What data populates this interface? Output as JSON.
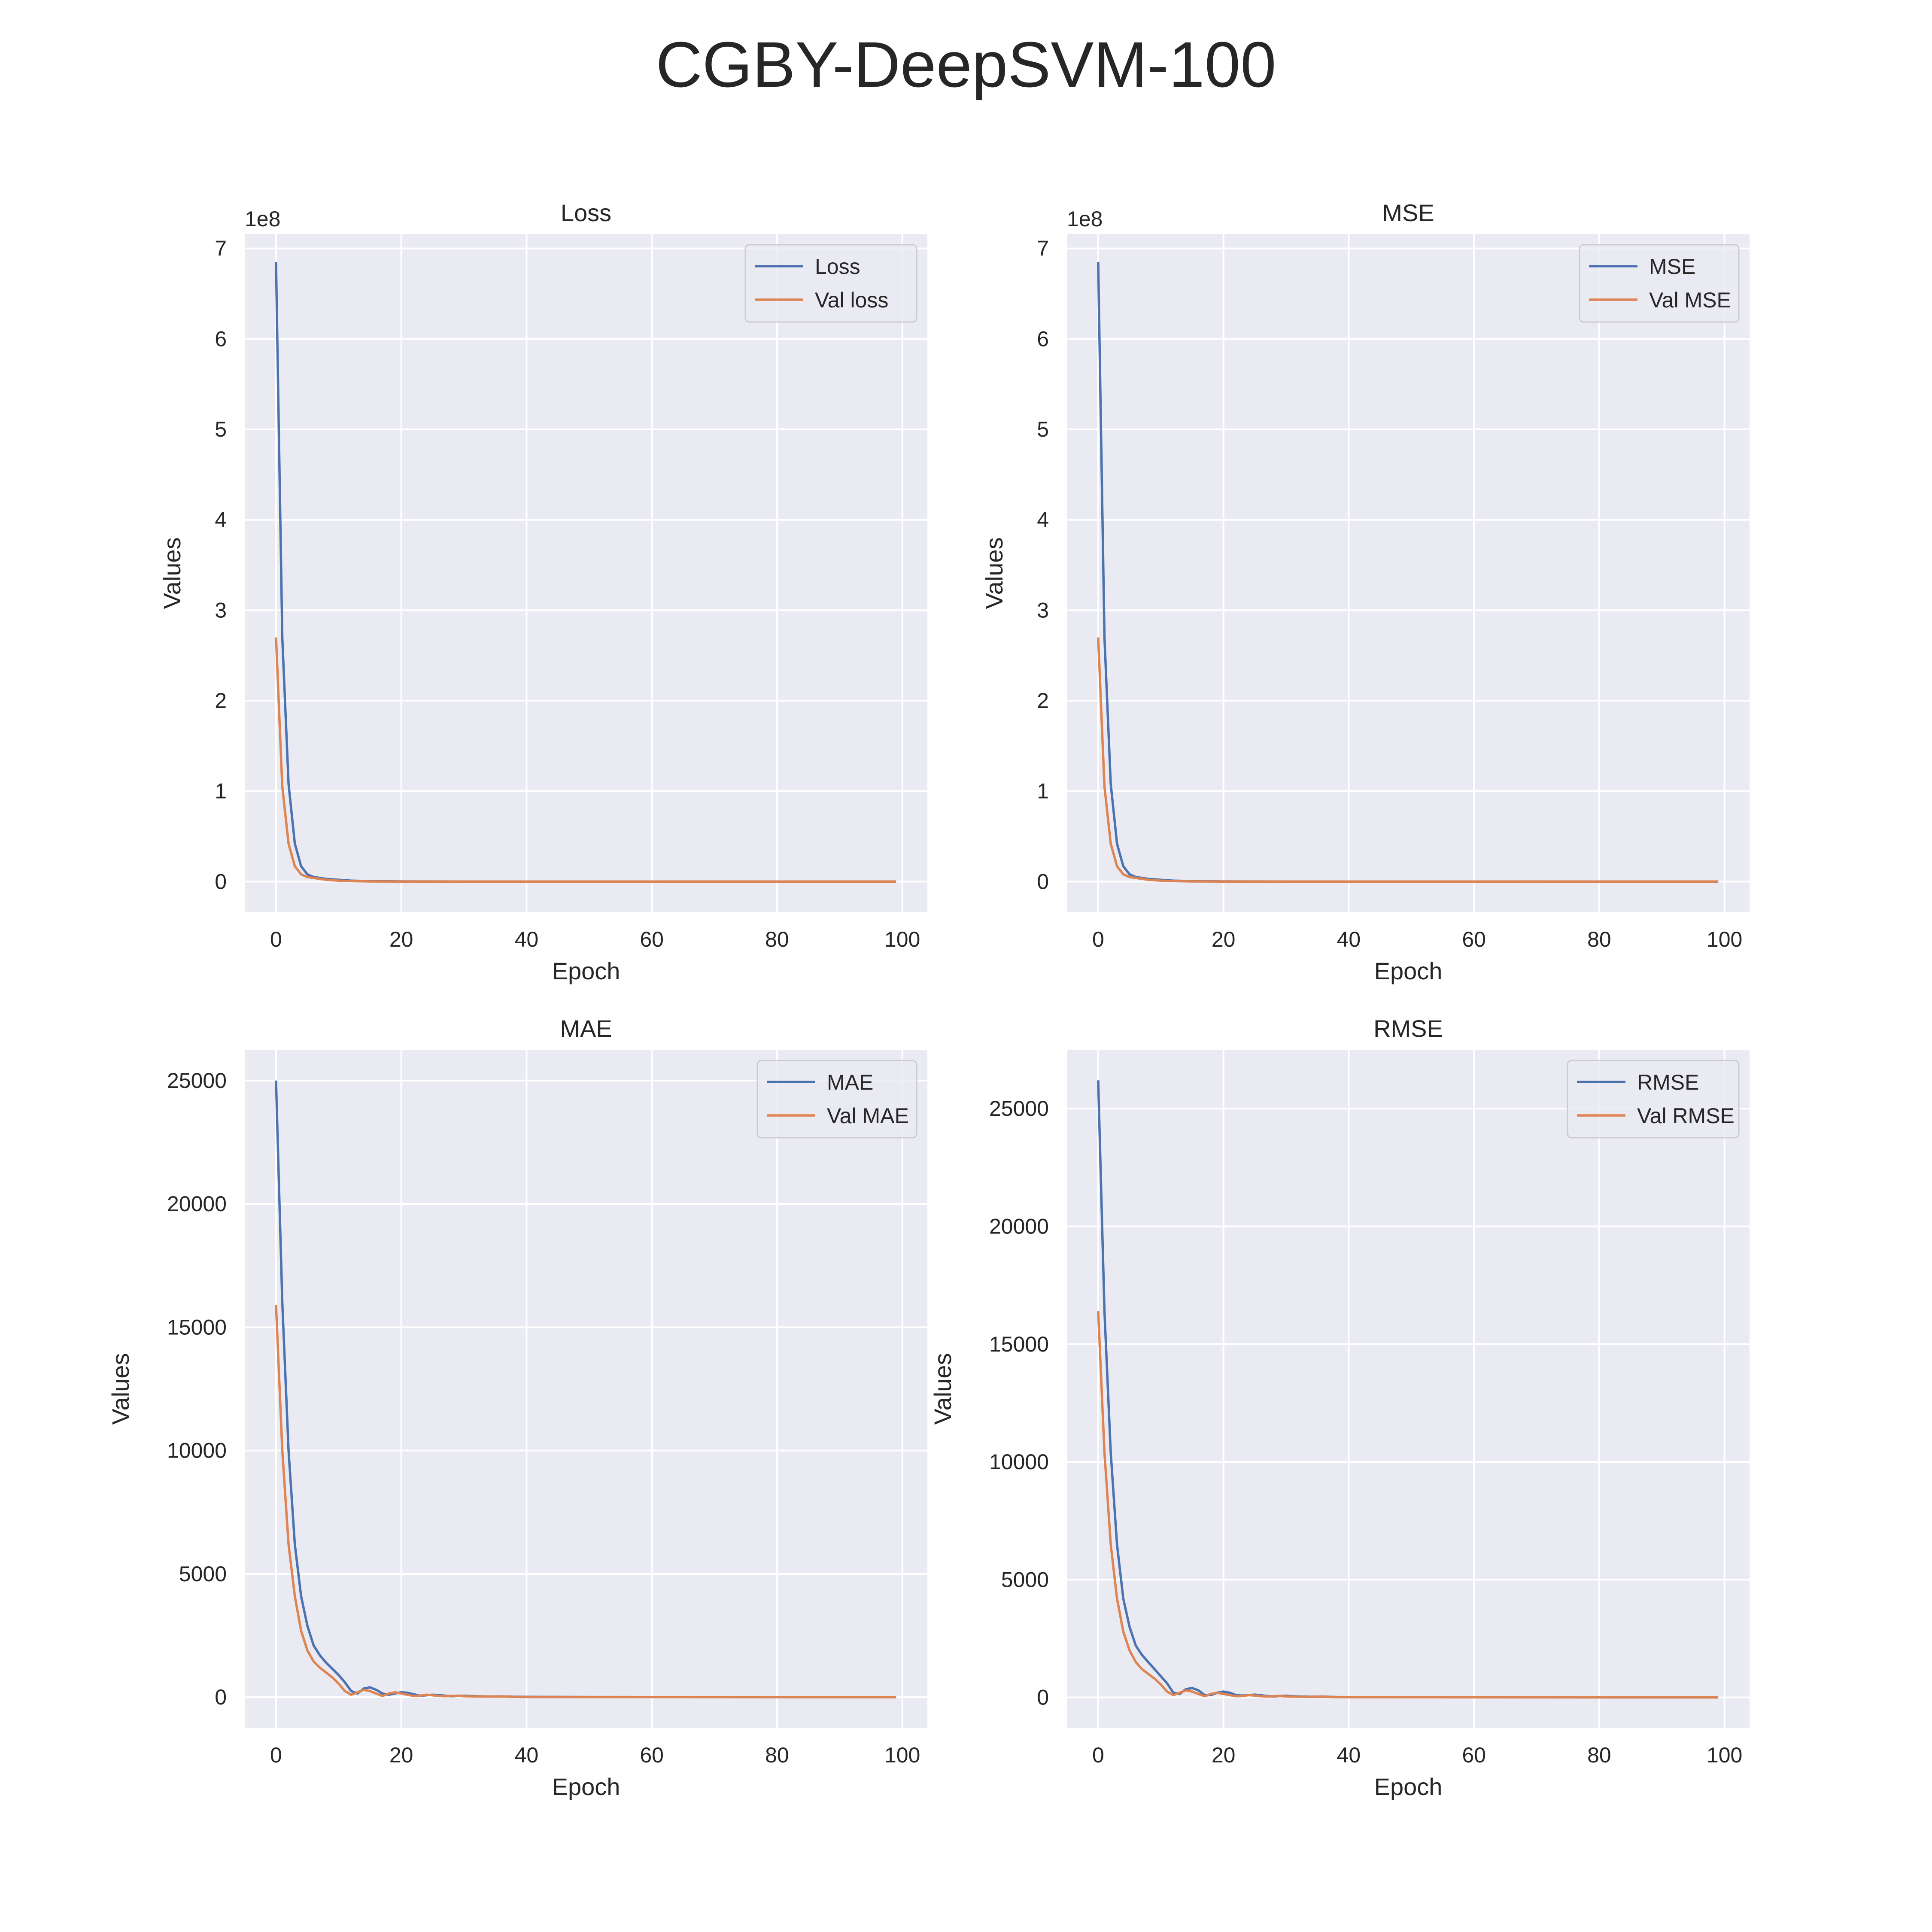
{
  "figure": {
    "title": "CGBY-DeepSVM-100"
  },
  "colors": {
    "plot_bg": "#eaeaf2",
    "grid": "#ffffff",
    "train": "#4c72b0",
    "val": "#dd8452",
    "text": "#262626",
    "legend_edge": "#cccccc"
  },
  "chart_data": [
    {
      "type": "line",
      "title": "Loss",
      "xlabel": "Epoch",
      "ylabel": "Values",
      "offset_text": "1e8",
      "xlim": [
        -5,
        104
      ],
      "ylim": [
        -0.34,
        7.16
      ],
      "xticks": [
        0,
        20,
        40,
        60,
        80,
        100
      ],
      "xtick_labels": [
        "0",
        "20",
        "40",
        "60",
        "80",
        "100"
      ],
      "yticks": [
        0,
        1,
        2,
        3,
        4,
        5,
        6,
        7
      ],
      "ytick_labels": [
        "0",
        "1",
        "2",
        "3",
        "4",
        "5",
        "6",
        "7"
      ],
      "legend": "top-right",
      "grid": true,
      "series": [
        {
          "name": "Loss",
          "color": "#4c72b0",
          "x": [
            0,
            1,
            2,
            3,
            4,
            5,
            6,
            7,
            8,
            10,
            12,
            15,
            20,
            30,
            99
          ],
          "y": [
            6.85,
            2.7,
            1.08,
            0.42,
            0.17,
            0.08,
            0.05,
            0.04,
            0.03,
            0.02,
            0.01,
            0.005,
            0.002,
            0.001,
            0.0
          ]
        },
        {
          "name": "Val loss",
          "color": "#dd8452",
          "x": [
            0,
            1,
            2,
            3,
            4,
            5,
            6,
            7,
            8,
            10,
            12,
            15,
            20,
            99
          ],
          "y": [
            2.7,
            1.05,
            0.42,
            0.17,
            0.08,
            0.05,
            0.04,
            0.03,
            0.02,
            0.01,
            0.005,
            0.002,
            0.001,
            0.0
          ]
        }
      ]
    },
    {
      "type": "line",
      "title": "MSE",
      "xlabel": "Epoch",
      "ylabel": "Values",
      "offset_text": "1e8",
      "xlim": [
        -5,
        104
      ],
      "ylim": [
        -0.34,
        7.16
      ],
      "xticks": [
        0,
        20,
        40,
        60,
        80,
        100
      ],
      "xtick_labels": [
        "0",
        "20",
        "40",
        "60",
        "80",
        "100"
      ],
      "yticks": [
        0,
        1,
        2,
        3,
        4,
        5,
        6,
        7
      ],
      "ytick_labels": [
        "0",
        "1",
        "2",
        "3",
        "4",
        "5",
        "6",
        "7"
      ],
      "legend": "top-right",
      "grid": true,
      "series": [
        {
          "name": "MSE",
          "color": "#4c72b0",
          "x": [
            0,
            1,
            2,
            3,
            4,
            5,
            6,
            7,
            8,
            10,
            12,
            15,
            20,
            30,
            99
          ],
          "y": [
            6.85,
            2.7,
            1.08,
            0.42,
            0.17,
            0.08,
            0.05,
            0.04,
            0.03,
            0.02,
            0.01,
            0.005,
            0.002,
            0.001,
            0.0
          ]
        },
        {
          "name": "Val MSE",
          "color": "#dd8452",
          "x": [
            0,
            1,
            2,
            3,
            4,
            5,
            6,
            7,
            8,
            10,
            12,
            15,
            20,
            99
          ],
          "y": [
            2.7,
            1.05,
            0.42,
            0.17,
            0.08,
            0.05,
            0.04,
            0.03,
            0.02,
            0.01,
            0.005,
            0.002,
            0.001,
            0.0
          ]
        }
      ]
    },
    {
      "type": "line",
      "title": "MAE",
      "xlabel": "Epoch",
      "ylabel": "Values",
      "offset_text": "",
      "xlim": [
        -5,
        104
      ],
      "ylim": [
        -1250,
        26250
      ],
      "xticks": [
        0,
        20,
        40,
        60,
        80,
        100
      ],
      "xtick_labels": [
        "0",
        "20",
        "40",
        "60",
        "80",
        "100"
      ],
      "yticks": [
        0,
        5000,
        10000,
        15000,
        20000,
        25000
      ],
      "ytick_labels": [
        "0",
        "5000",
        "10000",
        "15000",
        "20000",
        "25000"
      ],
      "legend": "top-right",
      "grid": true,
      "series": [
        {
          "name": "MAE",
          "color": "#4c72b0",
          "x": [
            0,
            1,
            2,
            3,
            4,
            5,
            6,
            7,
            8,
            9,
            10,
            11,
            12,
            13,
            14,
            15,
            16,
            17,
            18,
            19,
            20,
            21,
            22,
            23,
            24,
            25,
            26,
            27,
            28,
            29,
            30,
            32,
            34,
            36,
            38,
            40,
            50,
            60,
            70,
            80,
            90,
            99
          ],
          "y": [
            25000,
            16000,
            10000,
            6200,
            4100,
            2900,
            2100,
            1700,
            1400,
            1150,
            900,
            600,
            250,
            150,
            350,
            400,
            300,
            150,
            100,
            150,
            200,
            180,
            120,
            60,
            80,
            100,
            90,
            60,
            40,
            50,
            60,
            40,
            30,
            35,
            20,
            15,
            10,
            8,
            6,
            5,
            4,
            3
          ]
        },
        {
          "name": "Val MAE",
          "color": "#dd8452",
          "x": [
            0,
            1,
            2,
            3,
            4,
            5,
            6,
            7,
            8,
            9,
            10,
            11,
            12,
            13,
            14,
            15,
            16,
            17,
            18,
            19,
            20,
            21,
            22,
            23,
            24,
            25,
            26,
            27,
            28,
            29,
            30,
            32,
            34,
            36,
            38,
            40,
            50,
            60,
            70,
            80,
            90,
            99
          ],
          "y": [
            15900,
            10000,
            6200,
            4100,
            2700,
            1900,
            1450,
            1200,
            1000,
            800,
            550,
            250,
            100,
            200,
            300,
            250,
            150,
            50,
            150,
            200,
            150,
            100,
            50,
            60,
            100,
            80,
            50,
            40,
            50,
            60,
            40,
            30,
            25,
            30,
            15,
            10,
            8,
            6,
            5,
            4,
            3,
            2
          ]
        }
      ]
    },
    {
      "type": "line",
      "title": "RMSE",
      "xlabel": "Epoch",
      "ylabel": "Values",
      "offset_text": "",
      "xlim": [
        -5,
        104
      ],
      "ylim": [
        -1300,
        27500
      ],
      "xticks": [
        0,
        20,
        40,
        60,
        80,
        100
      ],
      "xtick_labels": [
        "0",
        "20",
        "40",
        "60",
        "80",
        "100"
      ],
      "yticks": [
        0,
        5000,
        10000,
        15000,
        20000,
        25000
      ],
      "ytick_labels": [
        "0",
        "5000",
        "10000",
        "15000",
        "20000",
        "25000"
      ],
      "legend": "top-right",
      "grid": true,
      "series": [
        {
          "name": "RMSE",
          "color": "#4c72b0",
          "x": [
            0,
            1,
            2,
            3,
            4,
            5,
            6,
            7,
            8,
            9,
            10,
            11,
            12,
            13,
            14,
            15,
            16,
            17,
            18,
            19,
            20,
            21,
            22,
            23,
            24,
            25,
            26,
            27,
            28,
            29,
            30,
            32,
            34,
            36,
            38,
            40,
            50,
            60,
            70,
            80,
            90,
            99
          ],
          "y": [
            26200,
            16400,
            10400,
            6500,
            4200,
            3000,
            2200,
            1800,
            1500,
            1200,
            900,
            600,
            200,
            150,
            350,
            400,
            300,
            100,
            100,
            200,
            250,
            200,
            100,
            80,
            100,
            120,
            90,
            60,
            40,
            60,
            70,
            40,
            30,
            35,
            20,
            15,
            10,
            8,
            6,
            5,
            4,
            3
          ]
        },
        {
          "name": "Val RMSE",
          "color": "#dd8452",
          "x": [
            0,
            1,
            2,
            3,
            4,
            5,
            6,
            7,
            8,
            9,
            10,
            11,
            12,
            13,
            14,
            15,
            16,
            17,
            18,
            19,
            20,
            21,
            22,
            23,
            24,
            25,
            26,
            27,
            28,
            29,
            30,
            32,
            34,
            36,
            38,
            40,
            50,
            60,
            70,
            80,
            90,
            99
          ],
          "y": [
            16400,
            10400,
            6500,
            4200,
            2800,
            2000,
            1500,
            1200,
            1000,
            800,
            550,
            250,
            100,
            200,
            300,
            250,
            150,
            50,
            150,
            200,
            150,
            100,
            50,
            60,
            100,
            80,
            50,
            40,
            50,
            60,
            40,
            30,
            25,
            30,
            15,
            10,
            8,
            6,
            5,
            4,
            3,
            2
          ]
        }
      ]
    }
  ]
}
